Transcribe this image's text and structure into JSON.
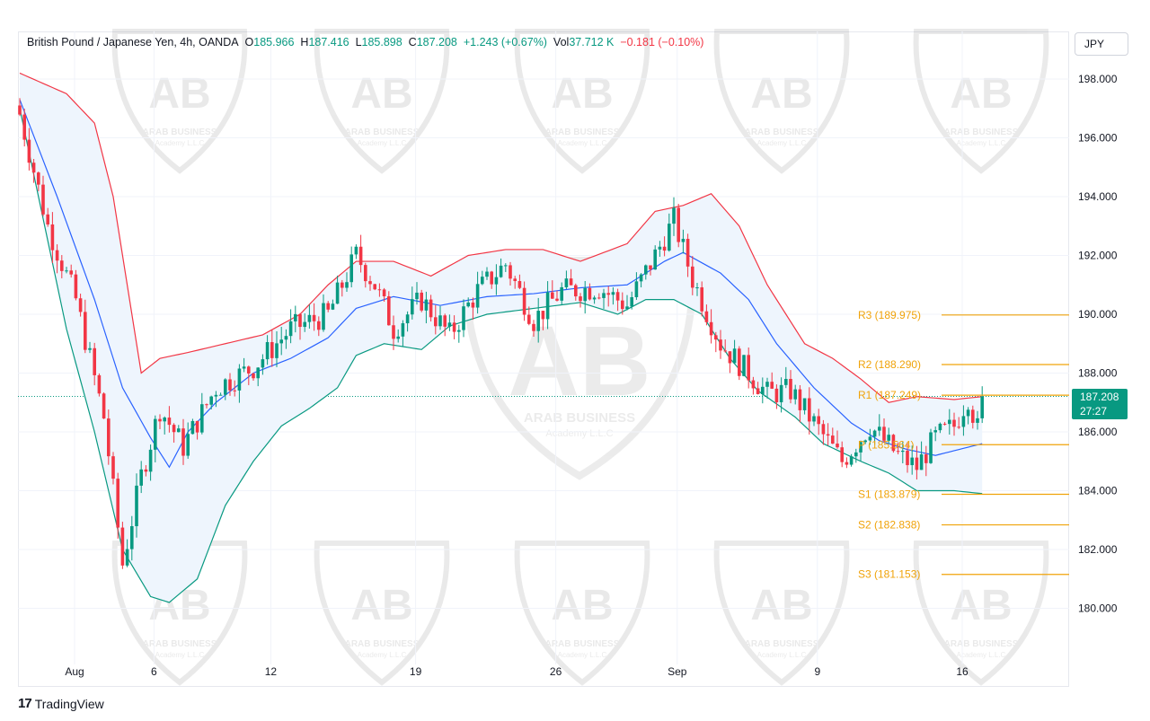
{
  "legend": {
    "symbol": "British Pound / Japanese Yen, 4h, OANDA",
    "open_label": "O",
    "open": "185.966",
    "high_label": "H",
    "high": "187.416",
    "low_label": "L",
    "low": "185.898",
    "close_label": "C",
    "close": "187.208",
    "change": "+1.243 (+0.67%)",
    "vol_label": "Vol",
    "vol": "37.712 K",
    "vol_change": "−0.181 (−0.10%)"
  },
  "currency": "JPY",
  "price_tag": {
    "price": "187.208",
    "countdown": "27:27"
  },
  "brand": {
    "logo": "17",
    "name": "TradingView"
  },
  "watermark": {
    "line1": "ARAB BUSINESS",
    "line2": "Academy L.L.C"
  },
  "colors": {
    "up": "#089981",
    "down": "#f23645",
    "bb_basis": "#2962ff",
    "bb_upper": "#f23645",
    "bb_lower": "#089981",
    "bb_fill": "#eef5fd",
    "pivot": "#f0a30a"
  },
  "chart_data": {
    "type": "candlestick",
    "symbol": "GBP/JPY",
    "timeframe": "4h",
    "ylim": [
      179.5,
      199.0
    ],
    "y_ticks": [
      "198.000",
      "196.000",
      "194.000",
      "192.000",
      "190.000",
      "188.000",
      "186.000",
      "184.000",
      "182.000",
      "180.000"
    ],
    "x_ticks": [
      {
        "label": "Aug",
        "i": 5
      },
      {
        "label": "6",
        "i": 22
      },
      {
        "label": "12",
        "i": 47
      },
      {
        "label": "19",
        "i": 78
      },
      {
        "label": "26",
        "i": 108
      },
      {
        "label": "Sep",
        "i": 134
      },
      {
        "label": "9",
        "i": 164
      },
      {
        "label": "16",
        "i": 195
      }
    ],
    "series_anchors": {
      "close": [
        [
          0,
          196.8
        ],
        [
          6,
          193.0
        ],
        [
          12,
          190.5
        ],
        [
          18,
          186.5
        ],
        [
          22,
          181.5
        ],
        [
          26,
          184.5
        ],
        [
          30,
          186.8
        ],
        [
          35,
          185.5
        ],
        [
          42,
          187.5
        ],
        [
          50,
          188.2
        ],
        [
          58,
          189.5
        ],
        [
          66,
          190.0
        ],
        [
          72,
          192.0
        ],
        [
          76,
          191.0
        ],
        [
          80,
          189.5
        ],
        [
          86,
          190.5
        ],
        [
          92,
          189.3
        ],
        [
          98,
          190.8
        ],
        [
          104,
          191.7
        ],
        [
          110,
          189.8
        ],
        [
          116,
          190.8
        ],
        [
          124,
          190.9
        ],
        [
          130,
          190.3
        ],
        [
          136,
          192.0
        ],
        [
          140,
          193.2
        ],
        [
          144,
          191.2
        ],
        [
          150,
          189.0
        ],
        [
          156,
          188.0
        ],
        [
          160,
          187.3
        ],
        [
          165,
          187.4
        ],
        [
          170,
          186.3
        ],
        [
          176,
          185.0
        ],
        [
          182,
          186.2
        ],
        [
          188,
          185.2
        ],
        [
          192,
          184.8
        ],
        [
          196,
          185.8
        ],
        [
          200,
          186.2
        ],
        [
          203,
          187.2
        ],
        [
          205,
          186.1
        ],
        [
          206,
          187.208
        ]
      ],
      "bb_basis": [
        [
          0,
          197.3
        ],
        [
          8,
          194.0
        ],
        [
          16,
          190.5
        ],
        [
          22,
          187.5
        ],
        [
          28,
          185.8
        ],
        [
          32,
          184.8
        ],
        [
          36,
          186.0
        ],
        [
          42,
          187.0
        ],
        [
          50,
          188.0
        ],
        [
          58,
          188.5
        ],
        [
          66,
          189.2
        ],
        [
          72,
          190.2
        ],
        [
          80,
          190.6
        ],
        [
          90,
          190.3
        ],
        [
          100,
          190.6
        ],
        [
          110,
          190.7
        ],
        [
          120,
          190.9
        ],
        [
          130,
          191.0
        ],
        [
          138,
          191.8
        ],
        [
          142,
          192.1
        ],
        [
          150,
          191.4
        ],
        [
          156,
          190.5
        ],
        [
          162,
          189.0
        ],
        [
          170,
          187.5
        ],
        [
          178,
          186.3
        ],
        [
          184,
          185.7
        ],
        [
          190,
          185.4
        ],
        [
          196,
          185.2
        ],
        [
          206,
          185.6
        ]
      ],
      "bb_upper": [
        [
          0,
          198.2
        ],
        [
          10,
          197.5
        ],
        [
          16,
          196.5
        ],
        [
          20,
          194.0
        ],
        [
          26,
          188.0
        ],
        [
          30,
          188.5
        ],
        [
          36,
          188.7
        ],
        [
          44,
          189.0
        ],
        [
          52,
          189.3
        ],
        [
          60,
          190.0
        ],
        [
          66,
          191.0
        ],
        [
          72,
          191.8
        ],
        [
          80,
          191.8
        ],
        [
          88,
          191.3
        ],
        [
          96,
          192.0
        ],
        [
          104,
          192.2
        ],
        [
          112,
          192.2
        ],
        [
          120,
          191.8
        ],
        [
          130,
          192.4
        ],
        [
          136,
          193.5
        ],
        [
          142,
          193.7
        ],
        [
          148,
          194.1
        ],
        [
          154,
          193.0
        ],
        [
          160,
          191.0
        ],
        [
          168,
          189.0
        ],
        [
          174,
          188.5
        ],
        [
          180,
          187.8
        ],
        [
          186,
          187.0
        ],
        [
          192,
          187.2
        ],
        [
          200,
          187.1
        ],
        [
          206,
          187.2
        ]
      ],
      "bb_lower": [
        [
          0,
          197.0
        ],
        [
          10,
          189.5
        ],
        [
          16,
          186.0
        ],
        [
          22,
          182.0
        ],
        [
          28,
          180.4
        ],
        [
          32,
          180.2
        ],
        [
          38,
          181.0
        ],
        [
          44,
          183.5
        ],
        [
          50,
          185.0
        ],
        [
          56,
          186.2
        ],
        [
          62,
          186.8
        ],
        [
          68,
          187.5
        ],
        [
          72,
          188.6
        ],
        [
          78,
          189.0
        ],
        [
          86,
          188.8
        ],
        [
          92,
          189.6
        ],
        [
          100,
          190.0
        ],
        [
          110,
          190.2
        ],
        [
          120,
          190.4
        ],
        [
          128,
          190.0
        ],
        [
          134,
          190.5
        ],
        [
          140,
          190.5
        ],
        [
          146,
          190.0
        ],
        [
          152,
          188.5
        ],
        [
          158,
          187.4
        ],
        [
          166,
          186.5
        ],
        [
          172,
          185.6
        ],
        [
          180,
          185.0
        ],
        [
          186,
          184.6
        ],
        [
          192,
          184.0
        ],
        [
          200,
          184.0
        ],
        [
          206,
          183.9
        ]
      ]
    },
    "candle_count": 207,
    "pivot_levels": [
      {
        "label": "R3 (189.975)",
        "value": 189.975
      },
      {
        "label": "R2 (188.290)",
        "value": 188.29
      },
      {
        "label": "R1 (187.249)",
        "value": 187.249
      },
      {
        "label": "P (185.564)",
        "value": 185.564
      },
      {
        "label": "S1 (183.879)",
        "value": 183.879
      },
      {
        "label": "S2 (182.838)",
        "value": 182.838
      },
      {
        "label": "S3 (181.153)",
        "value": 181.153
      }
    ],
    "last_price": 187.208
  }
}
